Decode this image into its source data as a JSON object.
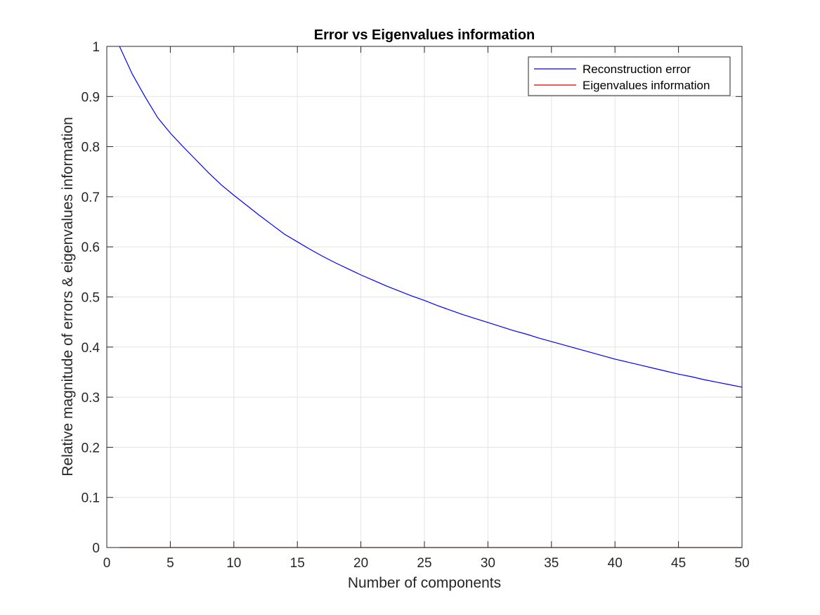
{
  "chart_data": {
    "type": "line",
    "title": "Error vs Eigenvalues information",
    "xlabel": "Number of components",
    "ylabel": "Relative magnitude of errors & eigenvalues information",
    "xlim": [
      0,
      50
    ],
    "ylim": [
      0,
      1
    ],
    "xticks": [
      0,
      5,
      10,
      15,
      20,
      25,
      30,
      35,
      40,
      45,
      50
    ],
    "yticks": [
      0,
      0.1,
      0.2,
      0.3,
      0.4,
      0.5,
      0.6,
      0.7,
      0.8,
      0.9,
      1
    ],
    "xtick_labels": [
      "0",
      "5",
      "10",
      "15",
      "20",
      "25",
      "30",
      "35",
      "40",
      "45",
      "50"
    ],
    "ytick_labels": [
      "0",
      "0.1",
      "0.2",
      "0.3",
      "0.4",
      "0.5",
      "0.6",
      "0.7",
      "0.8",
      "0.9",
      "1"
    ],
    "grid": true,
    "legend_position": "top-right",
    "x": [
      1,
      2,
      3,
      4,
      5,
      6,
      7,
      8,
      9,
      10,
      11,
      12,
      13,
      14,
      15,
      16,
      17,
      18,
      19,
      20,
      21,
      22,
      23,
      24,
      25,
      26,
      27,
      28,
      29,
      30,
      31,
      32,
      33,
      34,
      35,
      36,
      37,
      38,
      39,
      40,
      41,
      42,
      43,
      44,
      45,
      46,
      47,
      48,
      49,
      50
    ],
    "series": [
      {
        "name": "Reconstruction error",
        "color": "#0000ff",
        "values": [
          1.0,
          0.945,
          0.9,
          0.858,
          0.827,
          0.8,
          0.774,
          0.748,
          0.724,
          0.703,
          0.683,
          0.663,
          0.644,
          0.625,
          0.61,
          0.595,
          0.581,
          0.568,
          0.556,
          0.544,
          0.533,
          0.522,
          0.512,
          0.502,
          0.493,
          0.483,
          0.474,
          0.465,
          0.457,
          0.449,
          0.441,
          0.433,
          0.426,
          0.418,
          0.411,
          0.404,
          0.397,
          0.39,
          0.383,
          0.376,
          0.37,
          0.364,
          0.358,
          0.352,
          0.346,
          0.341,
          0.335,
          0.33,
          0.325,
          0.32
        ]
      },
      {
        "name": "Eigenvalues information",
        "color": "#d40000",
        "values": [
          0,
          0,
          0,
          0,
          0,
          0,
          0,
          0,
          0,
          0,
          0,
          0,
          0,
          0,
          0,
          0,
          0,
          0,
          0,
          0,
          0,
          0,
          0,
          0,
          0,
          0,
          0,
          0,
          0,
          0,
          0,
          0,
          0,
          0,
          0,
          0,
          0,
          0,
          0,
          0,
          0,
          0,
          0,
          0,
          0,
          0,
          0,
          0,
          0,
          0
        ]
      }
    ]
  }
}
